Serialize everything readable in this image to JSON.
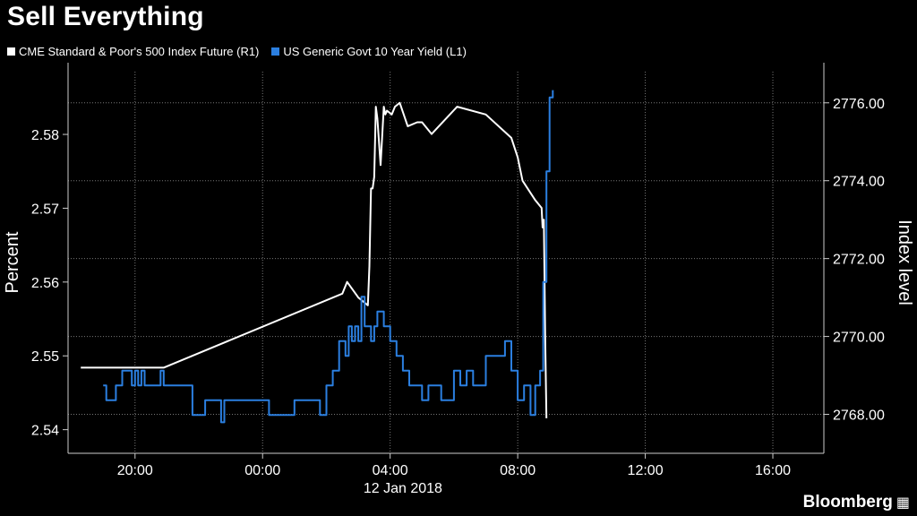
{
  "chart_data": {
    "type": "line",
    "title": "Sell Everything",
    "x_label": "12 Jan 2018",
    "x_ticks": [
      "20:00",
      "00:00",
      "04:00",
      "08:00",
      "12:00",
      "16:00"
    ],
    "x_tick_hours": [
      20,
      24,
      28,
      32,
      36,
      40
    ],
    "x_range_hours": [
      17.9,
      41.6
    ],
    "left_axis": {
      "label": "Percent",
      "ticks": [
        "2.54",
        "2.55",
        "2.56",
        "2.57",
        "2.58"
      ],
      "tick_values": [
        2.54,
        2.55,
        2.56,
        2.57,
        2.58
      ],
      "range": [
        2.5368,
        2.5885
      ]
    },
    "right_axis": {
      "label": "Index level",
      "ticks": [
        "2768.00",
        "2770.00",
        "2772.00",
        "2774.00",
        "2776.00"
      ],
      "tick_values": [
        2768,
        2770,
        2772,
        2774,
        2776
      ],
      "range": [
        2767.0,
        2776.8
      ]
    },
    "grid": true,
    "legend_position": "top-left",
    "series": [
      {
        "name": "CME Standard & Poor's 500 Index Future  (R1)",
        "axis": "right",
        "color": "#ffffff",
        "x": [
          18.3,
          20.9,
          26.5,
          26.65,
          27.0,
          27.3,
          27.35,
          27.4,
          27.45,
          27.5,
          27.55,
          27.6,
          27.7,
          27.8,
          27.85,
          27.9,
          28.05,
          28.15,
          28.3,
          28.55,
          28.85,
          29.0,
          29.3,
          30.1,
          31.0,
          31.8,
          32.0,
          32.15,
          32.55,
          32.75,
          32.78,
          32.82,
          32.86,
          32.9
        ],
        "y": [
          2769.2,
          2769.2,
          2771.1,
          2771.4,
          2771.0,
          2770.8,
          2771.8,
          2773.8,
          2773.8,
          2774.1,
          2775.9,
          2775.6,
          2774.4,
          2775.9,
          2775.7,
          2775.8,
          2775.7,
          2775.9,
          2776.0,
          2775.4,
          2775.5,
          2775.5,
          2775.2,
          2775.9,
          2775.7,
          2775.1,
          2774.6,
          2774.0,
          2773.5,
          2773.3,
          2772.8,
          2773.0,
          2770.0,
          2767.9
        ]
      },
      {
        "name": "US Generic Govt 10 Year Yield  (L1)",
        "axis": "left",
        "color": "#2b7fe0",
        "x": [
          19.0,
          19.1,
          19.3,
          19.4,
          19.6,
          19.8,
          19.9,
          20.0,
          20.1,
          20.2,
          20.3,
          20.4,
          20.8,
          20.9,
          21.2,
          21.5,
          21.8,
          22.0,
          22.2,
          22.6,
          22.7,
          22.8,
          23.0,
          23.4,
          23.8,
          24.2,
          24.6,
          25.0,
          25.2,
          25.5,
          25.8,
          26.0,
          26.2,
          26.4,
          26.6,
          26.7,
          26.8,
          26.9,
          27.0,
          27.1,
          27.2,
          27.3,
          27.4,
          27.5,
          27.6,
          27.8,
          28.0,
          28.2,
          28.4,
          28.6,
          28.8,
          29.0,
          29.2,
          29.4,
          29.6,
          29.8,
          30.0,
          30.2,
          30.4,
          30.6,
          30.8,
          31.0,
          31.2,
          31.4,
          31.6,
          31.8,
          32.0,
          32.2,
          32.4,
          32.55,
          32.7,
          32.8,
          32.9,
          33.0,
          33.1
        ],
        "y": [
          2.546,
          2.544,
          2.544,
          2.546,
          2.548,
          2.548,
          2.546,
          2.548,
          2.546,
          2.548,
          2.546,
          2.546,
          2.548,
          2.546,
          2.546,
          2.546,
          2.542,
          2.542,
          2.544,
          2.544,
          2.541,
          2.544,
          2.544,
          2.544,
          2.544,
          2.542,
          2.542,
          2.544,
          2.544,
          2.544,
          2.542,
          2.546,
          2.548,
          2.552,
          2.55,
          2.554,
          2.552,
          2.554,
          2.552,
          2.558,
          2.554,
          2.554,
          2.552,
          2.554,
          2.556,
          2.554,
          2.552,
          2.55,
          2.548,
          2.546,
          2.546,
          2.544,
          2.546,
          2.546,
          2.544,
          2.544,
          2.548,
          2.546,
          2.548,
          2.546,
          2.546,
          2.55,
          2.55,
          2.55,
          2.552,
          2.548,
          2.544,
          2.546,
          2.542,
          2.546,
          2.548,
          2.56,
          2.575,
          2.585,
          2.586
        ]
      }
    ]
  },
  "brand": {
    "name": "Bloomberg"
  }
}
